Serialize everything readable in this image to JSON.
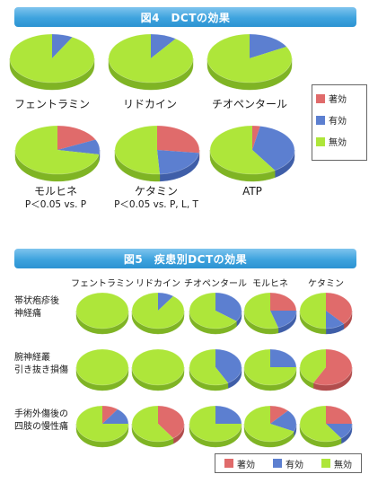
{
  "figure4": {
    "title": "図4　DCTの効果",
    "drugs": [
      "フェントラミン",
      "リドカイン",
      "チオペンタール",
      "モルヒネ",
      "ケタミン",
      "ATP"
    ],
    "significance": [
      "",
      "",
      "",
      "P＜0.05 vs. P",
      "P＜0.05 vs. P, L, T",
      ""
    ]
  },
  "figure5": {
    "title": "図5　疾患別DCTの効果",
    "columns": [
      "フェントラミン",
      "リドカイン",
      "チオペンタール",
      "モルヒネ",
      "ケタミン"
    ],
    "rows": [
      {
        "line1": "帯状疱疹後",
        "line2": "神経痛"
      },
      {
        "line1": "腕神経叢",
        "line2": "引き抜き損傷"
      },
      {
        "line1": "手術外傷後の",
        "line2": "四肢の慢性痛"
      }
    ]
  },
  "legend": {
    "items": [
      {
        "label": "著効",
        "color": "#e06b6b"
      },
      {
        "label": "有効",
        "color": "#5c7fd0"
      },
      {
        "label": "無効",
        "color": "#aee63a"
      }
    ]
  },
  "chart_data": [
    {
      "type": "pie",
      "title": "図4　DCTの効果",
      "categories": [
        "著効",
        "有効",
        "無効"
      ],
      "series": [
        {
          "name": "フェントラミン",
          "values": [
            0,
            8,
            92
          ]
        },
        {
          "name": "リドカイン",
          "values": [
            0,
            10,
            90
          ]
        },
        {
          "name": "チオペンタール",
          "values": [
            0,
            17,
            83
          ]
        },
        {
          "name": "モルヒネ",
          "values": [
            18,
            10,
            72
          ]
        },
        {
          "name": "ケタミン",
          "values": [
            27,
            22,
            51
          ]
        },
        {
          "name": "ATP",
          "values": [
            3,
            38,
            59
          ]
        }
      ]
    },
    {
      "type": "pie",
      "title": "図5　疾患別DCTの効果",
      "categories": [
        "著効",
        "有効",
        "無効"
      ],
      "series": [
        {
          "name": "帯状疱疹後神経痛 / フェントラミン",
          "values": [
            0,
            0,
            100
          ]
        },
        {
          "name": "帯状疱疹後神経痛 / リドカイン",
          "values": [
            0,
            10,
            90
          ]
        },
        {
          "name": "帯状疱疹後神経痛 / チオペンタール",
          "values": [
            0,
            35,
            65
          ]
        },
        {
          "name": "帯状疱疹後神経痛 / モルヒネ",
          "values": [
            25,
            20,
            55
          ]
        },
        {
          "name": "帯状疱疹後神経痛 / ケタミン",
          "values": [
            38,
            12,
            50
          ]
        },
        {
          "name": "腕神経叢引き抜き損傷 / フェントラミン",
          "values": [
            0,
            0,
            100
          ]
        },
        {
          "name": "腕神経叢引き抜き損傷 / リドカイン",
          "values": [
            0,
            0,
            100
          ]
        },
        {
          "name": "腕神経叢引き抜き損傷 / チオペンタール",
          "values": [
            0,
            42,
            58
          ]
        },
        {
          "name": "腕神経叢引き抜き損傷 / モルヒネ",
          "values": [
            0,
            25,
            75
          ]
        },
        {
          "name": "腕神経叢引き抜き損傷 / ケタミン",
          "values": [
            58,
            0,
            42
          ]
        },
        {
          "name": "手術外傷後の四肢の慢性痛 / フェントラミン",
          "values": [
            10,
            15,
            75
          ]
        },
        {
          "name": "手術外傷後の四肢の慢性痛 / リドカイン",
          "values": [
            40,
            0,
            60
          ]
        },
        {
          "name": "手術外傷後の四肢の慢性痛 / チオペンタール",
          "values": [
            0,
            25,
            75
          ]
        },
        {
          "name": "手術外傷後の四肢の慢性痛 / モルヒネ",
          "values": [
            12,
            20,
            68
          ]
        },
        {
          "name": "手術外傷後の四肢の慢性痛 / ケタミン",
          "values": [
            25,
            15,
            60
          ]
        }
      ]
    }
  ]
}
